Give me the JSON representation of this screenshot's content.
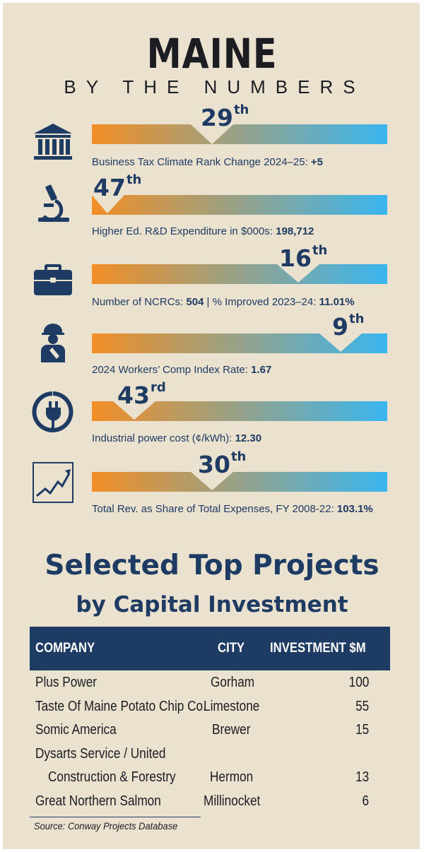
{
  "header": {
    "title": "MAINE",
    "subtitle": "BY THE NUMBERS"
  },
  "colors": {
    "bar_start": "#f28e25",
    "bar_end": "#39b6ef",
    "navy": "#1e3b63",
    "background": "#ebe1cf"
  },
  "metrics": [
    {
      "icon": "bank-building-icon",
      "rank_num": "29",
      "rank_suffix": "th",
      "label": "Business Tax Climate Rank Change 2024–25: ",
      "value": "+5"
    },
    {
      "icon": "microscope-icon",
      "rank_num": "47",
      "rank_suffix": "th",
      "label": "Higher Ed. R&D Expenditure in $000s: ",
      "value": "198,712"
    },
    {
      "icon": "briefcase-icon",
      "rank_num": "16",
      "rank_suffix": "th",
      "label": "Number of NCRCs: ",
      "value": "504",
      "label2": " | % Improved 2023–24: ",
      "value2": "11.01%"
    },
    {
      "icon": "injured-worker-icon",
      "rank_num": "9",
      "rank_suffix": "th",
      "label": "2024 Workers’ Comp Index Rate: ",
      "value": "1.67"
    },
    {
      "icon": "power-plug-icon",
      "rank_num": "43",
      "rank_suffix": "rd",
      "label": "Industrial power cost (¢/kWh): ",
      "value": "12.30"
    },
    {
      "icon": "trend-chart-icon",
      "rank_num": "30",
      "rank_suffix": "th",
      "label": "Total Rev. as Share of Total Expenses, FY 2008-22: ",
      "value": "103.1%"
    }
  ],
  "projects": {
    "title": "Selected Top Projects",
    "subtitle": "by Capital Investment",
    "columns": [
      "COMPANY",
      "CITY",
      "INVESTMENT $M"
    ],
    "rows": [
      {
        "company": "Plus Power",
        "city": "Gorham",
        "investment": "100"
      },
      {
        "company": "Taste Of Maine Potato Chip Co.",
        "city": "Limestone",
        "investment": "55"
      },
      {
        "company": "Somic America",
        "city": "Brewer",
        "investment": "15"
      },
      {
        "company": "Dysarts Service / United",
        "company2": "Construction & Forestry",
        "city": "Hermon",
        "investment": "13"
      },
      {
        "company": "Great Northern Salmon",
        "city": "Millinocket",
        "investment": "6"
      }
    ],
    "source": "Source: Conway Projects Database"
  }
}
